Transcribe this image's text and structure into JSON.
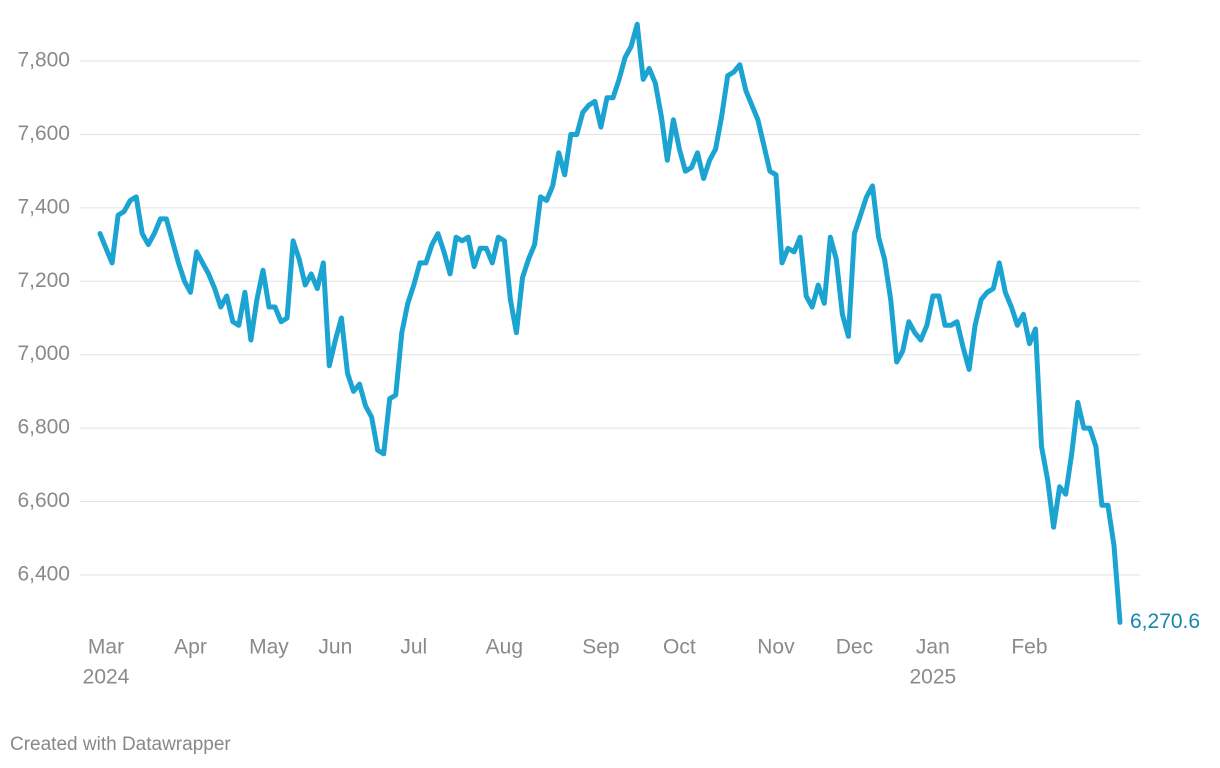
{
  "chart_data": {
    "type": "line",
    "categories": [
      "Mar",
      null,
      null,
      null,
      null,
      null,
      null,
      null,
      null,
      null,
      null,
      null,
      null,
      null,
      "Apr",
      null,
      null,
      null,
      null,
      null,
      null,
      null,
      null,
      null,
      null,
      null,
      null,
      "May",
      null,
      null,
      null,
      null,
      null,
      null,
      null,
      null,
      null,
      null,
      "Jun",
      null,
      null,
      null,
      null,
      null,
      null,
      null,
      null,
      null,
      null,
      null,
      null,
      "Jul",
      null,
      null,
      null,
      null,
      null,
      null,
      null,
      null,
      null,
      null,
      null,
      null,
      null,
      null,
      "Aug",
      null,
      null,
      null,
      null,
      null,
      null,
      null,
      null,
      null,
      null,
      null,
      null,
      null,
      null,
      null,
      "Sep",
      null,
      null,
      null,
      null,
      null,
      null,
      null,
      null,
      null,
      null,
      null,
      null,
      "Oct",
      null,
      null,
      null,
      null,
      null,
      null,
      null,
      null,
      null,
      null,
      null,
      null,
      null,
      null,
      null,
      "Nov",
      null,
      null,
      null,
      null,
      null,
      null,
      null,
      null,
      null,
      null,
      null,
      null,
      "Dec",
      null,
      null,
      null,
      null,
      null,
      null,
      null,
      null,
      null,
      null,
      null,
      null,
      "Jan",
      null,
      null,
      null,
      null,
      null,
      null,
      null,
      null,
      null,
      null,
      null,
      null,
      null,
      null,
      null,
      "Feb",
      null,
      null,
      null,
      null,
      null,
      null,
      null,
      null,
      null,
      null,
      null,
      null,
      null,
      null,
      null,
      null
    ],
    "x_sublabels": [
      "2024",
      null,
      null,
      null,
      null,
      null,
      null,
      null,
      null,
      null,
      null,
      null,
      null,
      null,
      null,
      null,
      null,
      null,
      null,
      null,
      null,
      null,
      null,
      null,
      null,
      null,
      null,
      null,
      null,
      null,
      null,
      null,
      null,
      null,
      null,
      null,
      null,
      null,
      null,
      null,
      null,
      null,
      null,
      null,
      null,
      null,
      null,
      null,
      null,
      null,
      null,
      null,
      null,
      null,
      null,
      null,
      null,
      null,
      null,
      null,
      null,
      null,
      null,
      null,
      null,
      null,
      null,
      null,
      null,
      null,
      null,
      null,
      null,
      null,
      null,
      null,
      null,
      null,
      null,
      null,
      null,
      null,
      null,
      null,
      null,
      null,
      null,
      null,
      null,
      null,
      null,
      null,
      null,
      null,
      null,
      null,
      null,
      null,
      null,
      null,
      null,
      null,
      null,
      null,
      null,
      null,
      null,
      null,
      null,
      null,
      null,
      null,
      null,
      null,
      null,
      null,
      null,
      null,
      null,
      null,
      null,
      null,
      null,
      null,
      null,
      null,
      null,
      null,
      null,
      null,
      null,
      null,
      null,
      null,
      null,
      null,
      null,
      "2025",
      null,
      null,
      null,
      null,
      null,
      null,
      null,
      null,
      null,
      null,
      null,
      null,
      null,
      null,
      null,
      null,
      null,
      null,
      null,
      null,
      null,
      null,
      null,
      null,
      null,
      null,
      null,
      null,
      null,
      null,
      null,
      null
    ],
    "values": [
      7330,
      7290,
      7250,
      7380,
      7390,
      7420,
      7430,
      7330,
      7300,
      7330,
      7370,
      7370,
      7310,
      7250,
      7200,
      7170,
      7280,
      7250,
      7220,
      7180,
      7130,
      7160,
      7090,
      7080,
      7170,
      7040,
      7150,
      7230,
      7130,
      7130,
      7090,
      7100,
      7310,
      7260,
      7190,
      7220,
      7180,
      7250,
      6970,
      7040,
      7100,
      6950,
      6900,
      6920,
      6860,
      6830,
      6740,
      6730,
      6880,
      6890,
      7060,
      7140,
      7190,
      7250,
      7250,
      7300,
      7330,
      7280,
      7220,
      7320,
      7310,
      7320,
      7240,
      7290,
      7290,
      7250,
      7320,
      7310,
      7150,
      7060,
      7210,
      7260,
      7300,
      7430,
      7420,
      7460,
      7550,
      7490,
      7600,
      7600,
      7660,
      7680,
      7690,
      7620,
      7700,
      7700,
      7750,
      7810,
      7840,
      7900,
      7750,
      7780,
      7740,
      7650,
      7530,
      7640,
      7560,
      7500,
      7510,
      7550,
      7480,
      7530,
      7560,
      7650,
      7760,
      7770,
      7790,
      7720,
      7680,
      7640,
      7570,
      7500,
      7490,
      7250,
      7290,
      7280,
      7320,
      7160,
      7130,
      7190,
      7140,
      7320,
      7260,
      7110,
      7050,
      7330,
      7380,
      7430,
      7460,
      7320,
      7260,
      7150,
      6980,
      7010,
      7090,
      7060,
      7040,
      7080,
      7160,
      7160,
      7080,
      7080,
      7090,
      7020,
      6960,
      7080,
      7150,
      7170,
      7180,
      7250,
      7170,
      7130,
      7080,
      7110,
      7030,
      7070,
      6750,
      6660,
      6530,
      6640,
      6620,
      6730,
      6870,
      6800,
      6800,
      6750,
      6590,
      6590,
      6480,
      6270.6
    ],
    "value_labels": [
      null,
      null,
      null,
      null,
      null,
      null,
      null,
      null,
      null,
      null,
      null,
      null,
      null,
      null,
      null,
      null,
      null,
      null,
      null,
      null,
      null,
      null,
      null,
      null,
      null,
      null,
      null,
      null,
      null,
      null,
      null,
      null,
      null,
      null,
      null,
      null,
      null,
      null,
      null,
      null,
      null,
      null,
      null,
      null,
      null,
      null,
      null,
      null,
      null,
      null,
      null,
      null,
      null,
      null,
      null,
      null,
      null,
      null,
      null,
      null,
      null,
      null,
      null,
      null,
      null,
      null,
      null,
      null,
      null,
      null,
      null,
      null,
      null,
      null,
      null,
      null,
      null,
      null,
      null,
      null,
      null,
      null,
      null,
      null,
      null,
      null,
      null,
      null,
      null,
      null,
      null,
      null,
      null,
      null,
      null,
      null,
      null,
      null,
      null,
      null,
      null,
      null,
      null,
      null,
      null,
      null,
      null,
      null,
      null,
      null,
      null,
      null,
      null,
      null,
      null,
      null,
      null,
      null,
      null,
      null,
      null,
      null,
      null,
      null,
      null,
      null,
      null,
      null,
      null,
      null,
      null,
      null,
      null,
      null,
      null,
      null,
      null,
      null,
      null,
      null,
      null,
      null,
      null,
      null,
      null,
      null,
      null,
      null,
      null,
      null,
      null,
      null,
      null,
      null,
      null,
      null,
      null,
      null,
      null,
      null,
      null,
      null,
      null,
      null,
      null,
      null,
      null,
      null,
      null,
      "6,270.6"
    ],
    "color": "#1ba3d1",
    "ylim": [
      6250,
      7920
    ],
    "yticks": [
      {
        "value": 6400,
        "label": "6,400"
      },
      {
        "value": 6600,
        "label": "6,600"
      },
      {
        "value": 6800,
        "label": "6,800"
      },
      {
        "value": 7000,
        "label": "7,000"
      },
      {
        "value": 7200,
        "label": "7,200"
      },
      {
        "value": 7400,
        "label": "7,400"
      },
      {
        "value": 7600,
        "label": "7,600"
      },
      {
        "value": 7800,
        "label": "7,800"
      }
    ],
    "grid": true,
    "footer": "Created with Datawrapper"
  }
}
